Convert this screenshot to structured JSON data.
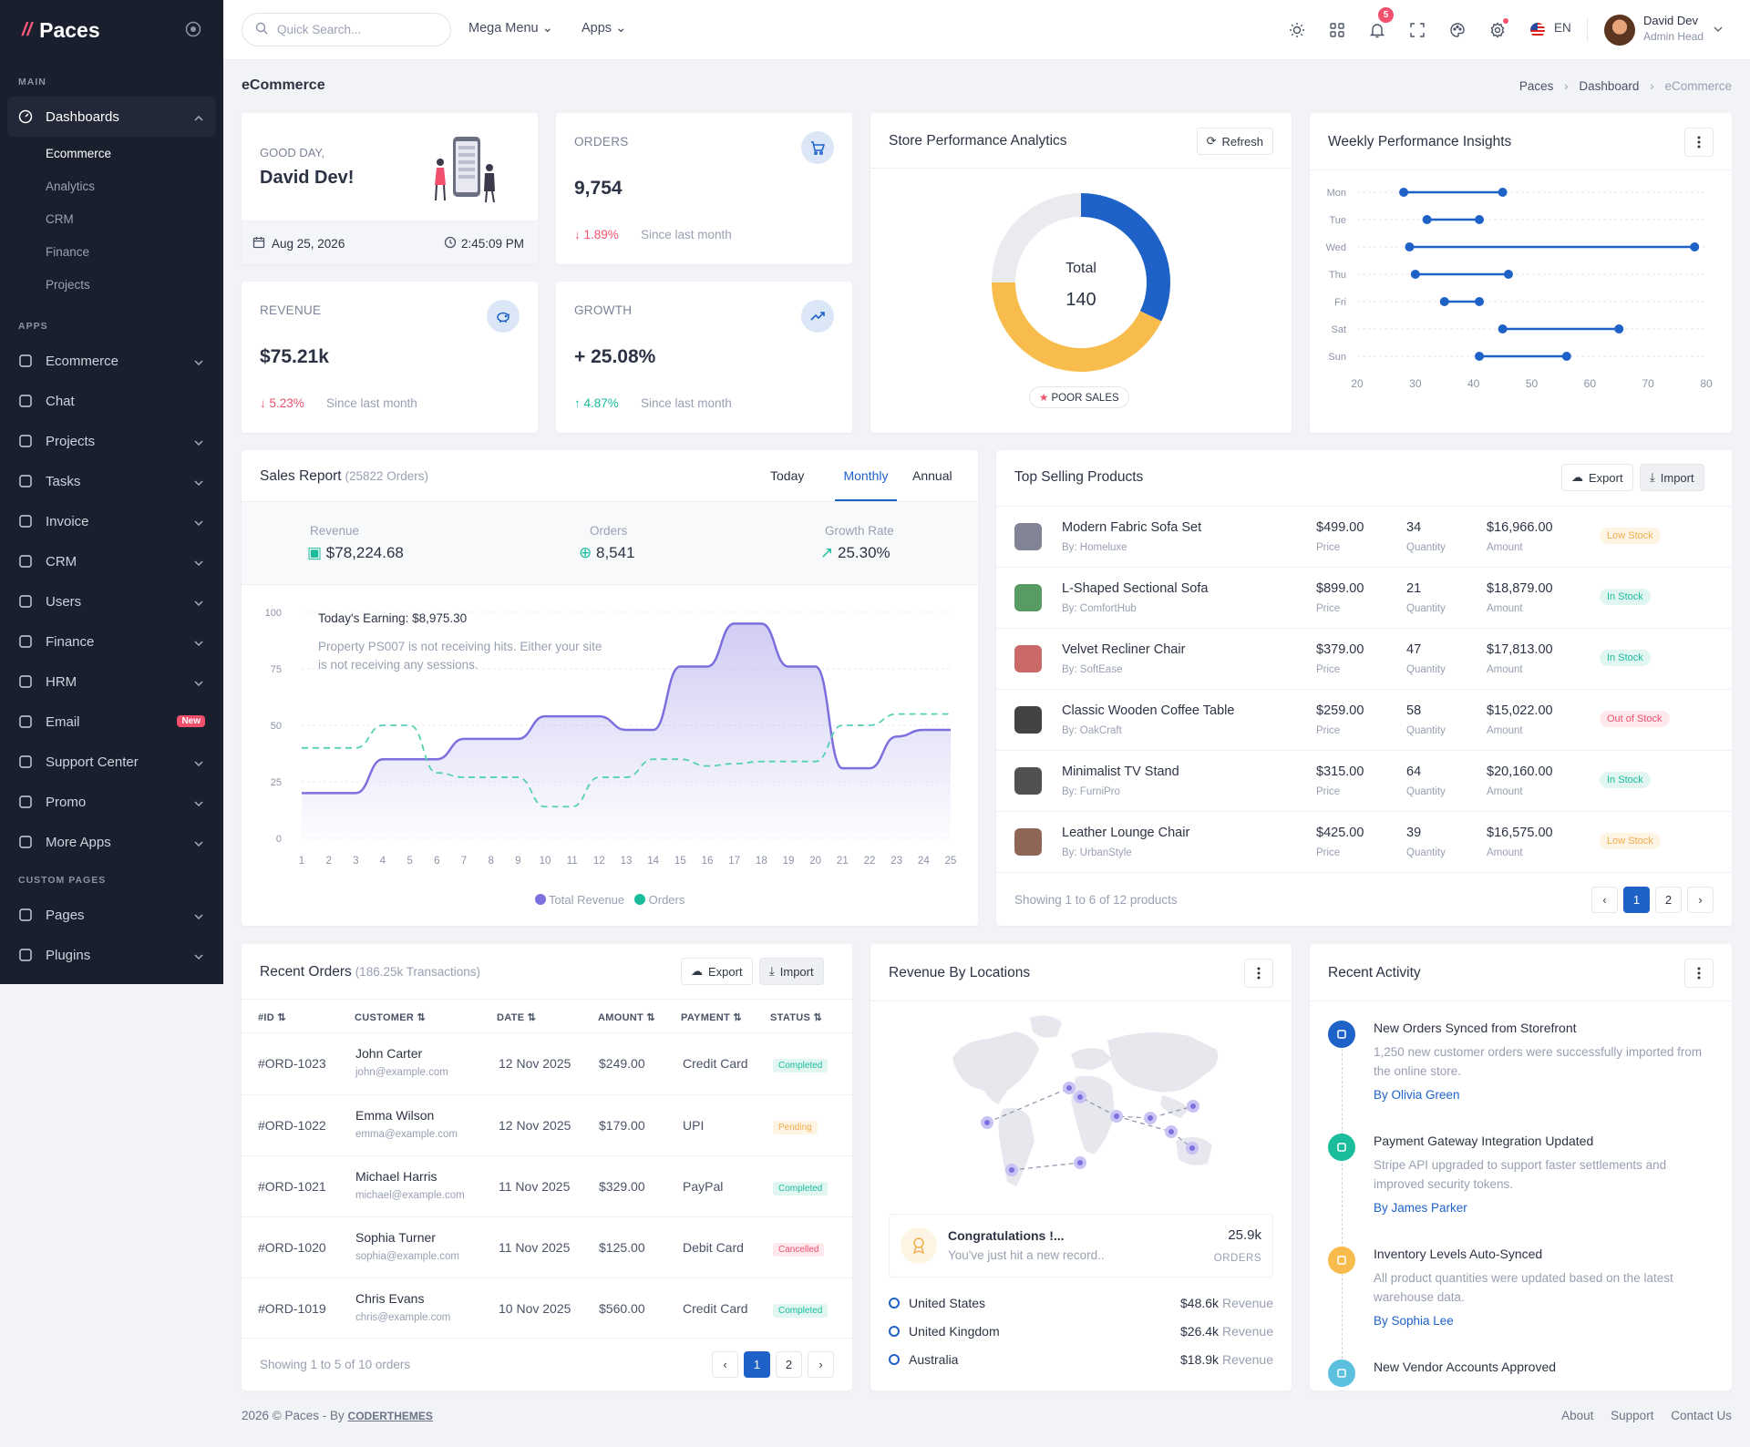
{
  "app": {
    "name": "Paces"
  },
  "sidebar": {
    "sections": [
      "MAIN",
      "APPS",
      "CUSTOM PAGES"
    ],
    "dashboards": {
      "label": "Dashboards",
      "sub": [
        "Ecommerce",
        "Analytics",
        "CRM",
        "Finance",
        "Projects"
      ]
    },
    "apps": [
      "Ecommerce",
      "Chat",
      "Projects",
      "Tasks",
      "Invoice",
      "CRM",
      "Users",
      "Finance",
      "HRM",
      "Email",
      "Support Center",
      "Promo",
      "More Apps"
    ],
    "email_badge": "New",
    "custom": [
      "Pages",
      "Plugins"
    ]
  },
  "topbar": {
    "search_placeholder": "Quick Search...",
    "mega": "Mega Menu",
    "apps": "Apps",
    "notif_count": "5",
    "lang": "EN",
    "user_name": "David Dev",
    "user_role": "Admin Head"
  },
  "page": {
    "title": "eCommerce",
    "breadcrumb": [
      "Paces",
      "Dashboard",
      "eCommerce"
    ]
  },
  "welcome": {
    "greeting": "GOOD DAY,",
    "name": "David Dev!",
    "date": "Aug 25, 2026",
    "time": "2:45:09 PM"
  },
  "stats": [
    {
      "label": "ORDERS",
      "value": "9,754",
      "change": "1.89%",
      "dir": "down",
      "note": "Since last month"
    },
    {
      "label": "REVENUE",
      "value": "$75.21k",
      "change": "5.23%",
      "dir": "down",
      "note": "Since last month"
    },
    {
      "label": "GROWTH",
      "value": "+ 25.08%",
      "change": "4.87%",
      "dir": "up",
      "note": "Since last month"
    }
  ],
  "store_perf": {
    "title": "Store Performance Analytics",
    "refresh": "Refresh",
    "total_label": "Total",
    "total": "140",
    "badge": "POOR SALES",
    "chart_data": {
      "type": "pie",
      "segments": [
        {
          "value": 45,
          "color": "#1e62c8"
        },
        {
          "value": 60,
          "color": "#f7bc4b"
        },
        {
          "value": 35,
          "color": "#e9ebef"
        }
      ]
    }
  },
  "weekly": {
    "title": "Weekly Performance Insights",
    "chart_data": {
      "type": "dumbbell",
      "days": [
        "Mon",
        "Tue",
        "Wed",
        "Thu",
        "Fri",
        "Sat",
        "Sun"
      ],
      "ranges": [
        [
          28,
          45
        ],
        [
          32,
          41
        ],
        [
          29,
          78
        ],
        [
          30,
          46
        ],
        [
          35,
          41
        ],
        [
          45,
          65
        ],
        [
          41,
          56
        ]
      ],
      "xticks": [
        20,
        30,
        40,
        50,
        60,
        70,
        80
      ],
      "xlim": [
        20,
        80
      ]
    }
  },
  "sales": {
    "title": "Sales Report",
    "subtitle": "(25822 Orders)",
    "tabs": [
      "Today",
      "Monthly",
      "Annual"
    ],
    "metrics": [
      {
        "label": "Revenue",
        "value": "$78,224.68"
      },
      {
        "label": "Orders",
        "value": "8,541"
      },
      {
        "label": "Growth Rate",
        "value": "25.30%"
      }
    ],
    "earning": "Today's Earning: $8,975.30",
    "earning_note": "Property PS007 is not receiving hits. Either your site is not receiving any sessions.",
    "legend": [
      "Total Revenue",
      "Orders"
    ],
    "chart_data": {
      "type": "area",
      "x": [
        1,
        2,
        3,
        4,
        5,
        6,
        7,
        8,
        9,
        10,
        11,
        12,
        13,
        14,
        15,
        16,
        17,
        18,
        19,
        20,
        21,
        22,
        23,
        24,
        25
      ],
      "yticks": [
        0,
        25,
        50,
        75,
        100
      ],
      "ylim": [
        0,
        100
      ],
      "series": [
        {
          "name": "Total Revenue",
          "values": [
            20,
            20,
            20,
            35,
            35,
            35,
            44,
            44,
            44,
            54,
            54,
            54,
            48,
            48,
            76,
            76,
            95,
            95,
            76,
            76,
            31,
            31,
            45,
            48,
            48
          ]
        },
        {
          "name": "Orders",
          "values": [
            40,
            40,
            40,
            50,
            50,
            29,
            27,
            27,
            27,
            14,
            14,
            27,
            27,
            35,
            35,
            32,
            33,
            34,
            34,
            34,
            50,
            50,
            55,
            55,
            55
          ]
        }
      ]
    }
  },
  "top_products": {
    "title": "Top Selling Products",
    "export": "Export",
    "import": "Import",
    "rows": [
      {
        "name": "Modern Fabric Sofa Set",
        "by": "By: Homeluxe",
        "price": "$499.00",
        "qty": "34",
        "amount": "$16,966.00",
        "status": "Low Stock",
        "st": "low"
      },
      {
        "name": "L-Shaped Sectional Sofa",
        "by": "By: ComfortHub",
        "price": "$899.00",
        "qty": "21",
        "amount": "$18,879.00",
        "status": "In Stock",
        "st": "in"
      },
      {
        "name": "Velvet Recliner Chair",
        "by": "By: SoftEase",
        "price": "$379.00",
        "qty": "47",
        "amount": "$17,813.00",
        "status": "In Stock",
        "st": "in"
      },
      {
        "name": "Classic Wooden Coffee Table",
        "by": "By: OakCraft",
        "price": "$259.00",
        "qty": "58",
        "amount": "$15,022.00",
        "status": "Out of Stock",
        "st": "out"
      },
      {
        "name": "Minimalist TV Stand",
        "by": "By: FurniPro",
        "price": "$315.00",
        "qty": "64",
        "amount": "$20,160.00",
        "status": "In Stock",
        "st": "in"
      },
      {
        "name": "Leather Lounge Chair",
        "by": "By: UrbanStyle",
        "price": "$425.00",
        "qty": "39",
        "amount": "$16,575.00",
        "status": "Low Stock",
        "st": "low"
      }
    ],
    "sub_price": "Price",
    "sub_qty": "Quantity",
    "sub_amount": "Amount",
    "showing": "Showing 1 to 6 of 12 products",
    "pages": [
      "1",
      "2"
    ]
  },
  "orders": {
    "title": "Recent Orders",
    "subtitle": "(186.25k Transactions)",
    "export": "Export",
    "import": "Import",
    "cols": [
      "#ID",
      "CUSTOMER",
      "DATE",
      "AMOUNT",
      "PAYMENT",
      "STATUS"
    ],
    "rows": [
      {
        "id": "#ORD-1023",
        "name": "John Carter",
        "email": "john@example.com",
        "date": "12 Nov 2025",
        "amount": "$249.00",
        "pay": "Credit Card",
        "status": "Completed",
        "st": "c"
      },
      {
        "id": "#ORD-1022",
        "name": "Emma Wilson",
        "email": "emma@example.com",
        "date": "12 Nov 2025",
        "amount": "$179.00",
        "pay": "UPI",
        "status": "Pending",
        "st": "p"
      },
      {
        "id": "#ORD-1021",
        "name": "Michael Harris",
        "email": "michael@example.com",
        "date": "11 Nov 2025",
        "amount": "$329.00",
        "pay": "PayPal",
        "status": "Completed",
        "st": "c"
      },
      {
        "id": "#ORD-1020",
        "name": "Sophia Turner",
        "email": "sophia@example.com",
        "date": "11 Nov 2025",
        "amount": "$125.00",
        "pay": "Debit Card",
        "status": "Cancelled",
        "st": "x"
      },
      {
        "id": "#ORD-1019",
        "name": "Chris Evans",
        "email": "chris@example.com",
        "date": "10 Nov 2025",
        "amount": "$560.00",
        "pay": "Credit Card",
        "status": "Completed",
        "st": "c"
      }
    ],
    "showing": "Showing 1 to 5 of 10 orders",
    "pages": [
      "1",
      "2"
    ]
  },
  "locations": {
    "title": "Revenue By Locations",
    "congrats": "Congratulations !...",
    "congrats_note": "You've just hit a new record..",
    "record": "25.9k",
    "record_label": "ORDERS",
    "rows": [
      {
        "country": "United States",
        "value": "$48.6k",
        "label": "Revenue"
      },
      {
        "country": "United Kingdom",
        "value": "$26.4k",
        "label": "Revenue"
      },
      {
        "country": "Australia",
        "value": "$18.9k",
        "label": "Revenue"
      }
    ]
  },
  "activity": {
    "title": "Recent Activity",
    "items": [
      {
        "title": "New Orders Synced from Storefront",
        "text": "1,250 new customer orders were successfully imported from the online store.",
        "by": "By Olivia Green",
        "color": "#1e62c8"
      },
      {
        "title": "Payment Gateway Integration Updated",
        "text": "Stripe API upgraded to support faster settlements and improved security tokens.",
        "by": "By James Parker",
        "color": "#1abc9c"
      },
      {
        "title": "Inventory Levels Auto-Synced",
        "text": "All product quantities were updated based on the latest warehouse data.",
        "by": "By Sophia Lee",
        "color": "#f7bc4b"
      },
      {
        "title": "New Vendor Accounts Approved",
        "text": "",
        "by": "",
        "color": "#5bc0de"
      }
    ]
  },
  "footer": {
    "copy": "2026 © Paces - By",
    "brand": "CODERTHEMES",
    "links": [
      "About",
      "Support",
      "Contact Us"
    ]
  }
}
